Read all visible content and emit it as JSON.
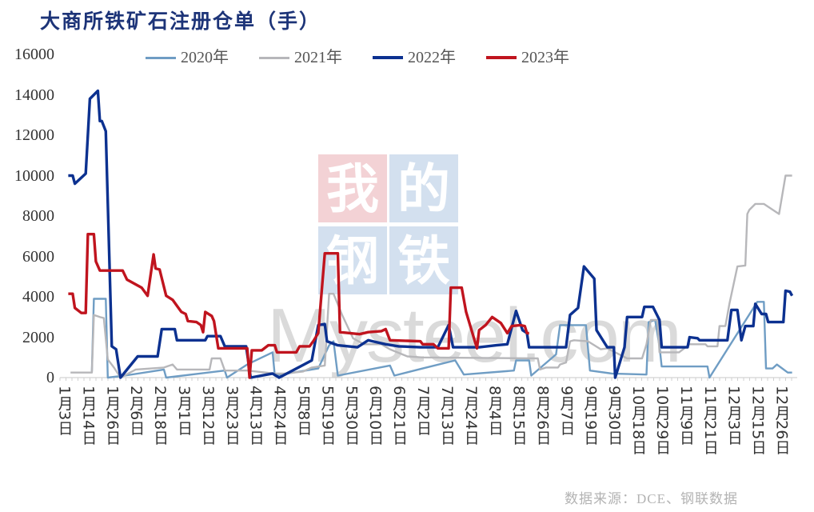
{
  "title": "大商所铁矿石注册仓单（手）",
  "source": "数据来源：DCE、钢联数据",
  "watermark": {
    "chars": [
      "我",
      "的",
      "钢",
      "铁"
    ],
    "brand": "Mysteel.com",
    "tile_colors": [
      "#f3d2d5",
      "#d3e0ef",
      "#d3e0ef",
      "#d3e0ef"
    ]
  },
  "chart_data": {
    "type": "line",
    "title": "大商所铁矿石注册仓单（手）",
    "xlabel": "",
    "ylabel": "",
    "ylim": [
      0,
      16000
    ],
    "yticks": [
      "0",
      "2000",
      "4000",
      "6000",
      "8000",
      "10000",
      "12000",
      "14000",
      "16000"
    ],
    "xticks": [
      "1月3日",
      "1月14日",
      "1月26日",
      "2月6日",
      "2月18日",
      "3月1日",
      "3月12日",
      "3月23日",
      "4月13日",
      "4月24日",
      "5月8日",
      "5月19日",
      "5月30日",
      "6月10日",
      "6月21日",
      "7月2日",
      "7月13日",
      "7月24日",
      "8月4日",
      "8月15日",
      "8月26日",
      "9月7日",
      "9月19日",
      "9月30日",
      "10月18日",
      "10月29日",
      "11月9日",
      "11月21日",
      "12月3日",
      "12月15日",
      "12月26日"
    ],
    "grid": false,
    "legend": "top",
    "series": [
      {
        "name": "2020年",
        "color": "#6f9dc4",
        "points": [
          [
            "01-16",
            300
          ],
          [
            "01-17",
            3900
          ],
          [
            "01-23",
            3900
          ],
          [
            "01-24",
            0
          ],
          [
            "02-01",
            100
          ],
          [
            "02-20",
            400
          ],
          [
            "02-21",
            0
          ],
          [
            "03-20",
            350
          ],
          [
            "03-21",
            0
          ],
          [
            "04-06",
            650
          ],
          [
            "04-21",
            1250
          ],
          [
            "04-22",
            100
          ],
          [
            "05-15",
            450
          ],
          [
            "05-20",
            1600
          ],
          [
            "05-22",
            1800
          ],
          [
            "05-24",
            100
          ],
          [
            "06-17",
            600
          ],
          [
            "06-19",
            100
          ],
          [
            "07-02",
            450
          ],
          [
            "07-17",
            850
          ],
          [
            "07-21",
            150
          ],
          [
            "08-13",
            350
          ],
          [
            "08-14",
            850
          ],
          [
            "08-20",
            850
          ],
          [
            "08-21",
            100
          ],
          [
            "09-02",
            1150
          ],
          [
            "09-04",
            2600
          ],
          [
            "09-17",
            2600
          ],
          [
            "09-19",
            350
          ],
          [
            "09-29",
            200
          ],
          [
            "10-22",
            150
          ],
          [
            "10-23",
            2750
          ],
          [
            "10-26",
            2850
          ],
          [
            "10-28",
            1550
          ],
          [
            "10-29",
            550
          ],
          [
            "11-20",
            550
          ],
          [
            "11-21",
            0
          ],
          [
            "12-15",
            3750
          ],
          [
            "12-18",
            3750
          ],
          [
            "12-19",
            450
          ],
          [
            "12-22",
            450
          ],
          [
            "12-24",
            650
          ],
          [
            "12-29",
            250
          ],
          [
            "12-31",
            250
          ]
        ]
      },
      {
        "name": "2021年",
        "color": "#b7b7ba",
        "points": [
          [
            "01-06",
            250
          ],
          [
            "01-16",
            250
          ],
          [
            "01-17",
            3100
          ],
          [
            "01-20",
            3000
          ],
          [
            "01-22",
            2950
          ],
          [
            "01-24",
            900
          ],
          [
            "01-27",
            500
          ],
          [
            "01-30",
            0
          ],
          [
            "02-06",
            400
          ],
          [
            "02-20",
            500
          ],
          [
            "02-24",
            650
          ],
          [
            "02-26",
            400
          ],
          [
            "03-13",
            400
          ],
          [
            "03-14",
            950
          ],
          [
            "03-18",
            950
          ],
          [
            "03-20",
            350
          ],
          [
            "04-06",
            350
          ],
          [
            "04-22",
            200
          ],
          [
            "04-27",
            200
          ],
          [
            "05-08",
            300
          ],
          [
            "05-12",
            500
          ],
          [
            "05-18",
            600
          ],
          [
            "05-20",
            4150
          ],
          [
            "05-22",
            4150
          ],
          [
            "05-26",
            3100
          ],
          [
            "05-31",
            1950
          ],
          [
            "06-05",
            1650
          ],
          [
            "06-13",
            1650
          ],
          [
            "06-17",
            1400
          ],
          [
            "06-25",
            1050
          ],
          [
            "07-02",
            1000
          ],
          [
            "08-24",
            950
          ],
          [
            "08-25",
            400
          ],
          [
            "08-28",
            500
          ],
          [
            "09-03",
            500
          ],
          [
            "09-04",
            650
          ],
          [
            "09-07",
            750
          ],
          [
            "09-09",
            1800
          ],
          [
            "09-11",
            1850
          ],
          [
            "09-18",
            1800
          ],
          [
            "09-24",
            1400
          ],
          [
            "09-27",
            1450
          ],
          [
            "10-10",
            950
          ],
          [
            "10-20",
            950
          ],
          [
            "10-22",
            1650
          ],
          [
            "10-24",
            2850
          ],
          [
            "10-27",
            2850
          ],
          [
            "10-28",
            1250
          ],
          [
            "11-06",
            1250
          ],
          [
            "11-11",
            1650
          ],
          [
            "11-19",
            1650
          ],
          [
            "11-20",
            1550
          ],
          [
            "11-25",
            1550
          ],
          [
            "11-26",
            2550
          ],
          [
            "11-29",
            2550
          ],
          [
            "12-01",
            3650
          ],
          [
            "12-05",
            5500
          ],
          [
            "12-09",
            5550
          ],
          [
            "12-10",
            8100
          ],
          [
            "12-11",
            8300
          ],
          [
            "12-14",
            8600
          ],
          [
            "12-18",
            8600
          ],
          [
            "12-25",
            8100
          ],
          [
            "12-28",
            10000
          ],
          [
            "12-31",
            10000
          ]
        ]
      },
      {
        "name": "2022年",
        "color": "#0c3190",
        "points": [
          [
            "01-05",
            10000
          ],
          [
            "01-07",
            10000
          ],
          [
            "01-08",
            9600
          ],
          [
            "01-13",
            10100
          ],
          [
            "01-15",
            13800
          ],
          [
            "01-19",
            14200
          ],
          [
            "01-20",
            12700
          ],
          [
            "01-21",
            12700
          ],
          [
            "01-23",
            12200
          ],
          [
            "01-26",
            1550
          ],
          [
            "01-28",
            1400
          ],
          [
            "01-30",
            0
          ],
          [
            "02-07",
            1050
          ],
          [
            "02-17",
            1050
          ],
          [
            "02-19",
            2400
          ],
          [
            "02-25",
            2400
          ],
          [
            "02-26",
            1850
          ],
          [
            "03-11",
            1850
          ],
          [
            "03-12",
            2050
          ],
          [
            "03-18",
            2050
          ],
          [
            "03-20",
            1550
          ],
          [
            "04-05",
            1550
          ],
          [
            "04-09",
            0
          ],
          [
            "04-21",
            200
          ],
          [
            "04-24",
            0
          ],
          [
            "05-12",
            850
          ],
          [
            "05-15",
            2600
          ],
          [
            "05-18",
            2650
          ],
          [
            "05-19",
            1800
          ],
          [
            "05-24",
            1600
          ],
          [
            "06-02",
            1500
          ],
          [
            "06-07",
            1850
          ],
          [
            "06-09",
            1800
          ],
          [
            "06-15",
            1650
          ],
          [
            "06-21",
            1550
          ],
          [
            "07-01",
            1500
          ],
          [
            "07-09",
            1500
          ],
          [
            "07-14",
            2600
          ],
          [
            "07-16",
            1500
          ],
          [
            "07-28",
            1500
          ],
          [
            "08-05",
            1600
          ],
          [
            "08-10",
            1650
          ],
          [
            "08-14",
            3300
          ],
          [
            "08-17",
            2350
          ],
          [
            "08-19",
            2200
          ],
          [
            "08-20",
            1500
          ],
          [
            "09-07",
            1500
          ],
          [
            "09-09",
            3100
          ],
          [
            "09-13",
            3450
          ],
          [
            "09-16",
            5500
          ],
          [
            "09-21",
            4900
          ],
          [
            "09-22",
            2350
          ],
          [
            "09-27",
            1500
          ],
          [
            "09-30",
            1500
          ],
          [
            "10-01",
            0
          ],
          [
            "10-08",
            1500
          ],
          [
            "10-10",
            3000
          ],
          [
            "10-20",
            3000
          ],
          [
            "10-21",
            3500
          ],
          [
            "10-25",
            3500
          ],
          [
            "10-28",
            2850
          ],
          [
            "10-29",
            1500
          ],
          [
            "11-10",
            1500
          ],
          [
            "11-11",
            2000
          ],
          [
            "11-15",
            1950
          ],
          [
            "11-16",
            1850
          ],
          [
            "11-30",
            1850
          ],
          [
            "12-02",
            3350
          ],
          [
            "12-05",
            3350
          ],
          [
            "12-07",
            1850
          ],
          [
            "12-09",
            2550
          ],
          [
            "12-13",
            2550
          ],
          [
            "12-14",
            3650
          ],
          [
            "12-17",
            3150
          ],
          [
            "12-19",
            3150
          ],
          [
            "12-20",
            2750
          ],
          [
            "12-27",
            2750
          ],
          [
            "12-28",
            4300
          ],
          [
            "12-30",
            4250
          ],
          [
            "12-31",
            4050
          ]
        ]
      },
      {
        "name": "2023年",
        "color": "#c0141e",
        "points": [
          [
            "01-05",
            4150
          ],
          [
            "01-07",
            4150
          ],
          [
            "01-08",
            3450
          ],
          [
            "01-11",
            3200
          ],
          [
            "01-13",
            3200
          ],
          [
            "01-14",
            7100
          ],
          [
            "01-17",
            7100
          ],
          [
            "01-18",
            5750
          ],
          [
            "01-20",
            5300
          ],
          [
            "01-31",
            5300
          ],
          [
            "02-02",
            4850
          ],
          [
            "02-09",
            4450
          ],
          [
            "02-12",
            4050
          ],
          [
            "02-15",
            6100
          ],
          [
            "02-16",
            5400
          ],
          [
            "02-18",
            5350
          ],
          [
            "02-21",
            4050
          ],
          [
            "02-24",
            3850
          ],
          [
            "02-28",
            3250
          ],
          [
            "03-02",
            3150
          ],
          [
            "03-03",
            2800
          ],
          [
            "03-07",
            2750
          ],
          [
            "03-09",
            2600
          ],
          [
            "03-10",
            2250
          ],
          [
            "03-11",
            3250
          ],
          [
            "03-14",
            3050
          ],
          [
            "03-15",
            2800
          ],
          [
            "03-17",
            1450
          ],
          [
            "04-06",
            1450
          ],
          [
            "04-08",
            0
          ],
          [
            "04-10",
            1350
          ],
          [
            "04-16",
            1350
          ],
          [
            "04-19",
            1600
          ],
          [
            "04-22",
            1600
          ],
          [
            "04-23",
            1250
          ],
          [
            "05-04",
            1250
          ],
          [
            "05-06",
            1550
          ],
          [
            "05-11",
            1550
          ],
          [
            "05-13",
            1850
          ],
          [
            "05-15",
            2200
          ],
          [
            "05-18",
            6150
          ],
          [
            "05-24",
            6150
          ],
          [
            "05-25",
            2250
          ],
          [
            "06-03",
            2150
          ],
          [
            "06-07",
            2250
          ],
          [
            "06-13",
            2300
          ],
          [
            "06-15",
            2400
          ],
          [
            "06-17",
            1850
          ],
          [
            "07-01",
            1800
          ],
          [
            "07-02",
            1650
          ],
          [
            "07-07",
            1650
          ],
          [
            "07-09",
            1450
          ],
          [
            "07-14",
            1450
          ],
          [
            "07-15",
            4450
          ],
          [
            "07-20",
            4450
          ],
          [
            "07-22",
            3250
          ],
          [
            "07-27",
            1450
          ],
          [
            "07-28",
            2350
          ],
          [
            "07-31",
            2600
          ],
          [
            "08-03",
            3000
          ],
          [
            "08-07",
            2700
          ],
          [
            "08-10",
            2200
          ],
          [
            "08-12",
            2550
          ],
          [
            "08-16",
            2600
          ],
          [
            "08-18",
            2550
          ],
          [
            "08-19",
            2200
          ],
          [
            "08-20",
            2200
          ]
        ]
      }
    ]
  }
}
